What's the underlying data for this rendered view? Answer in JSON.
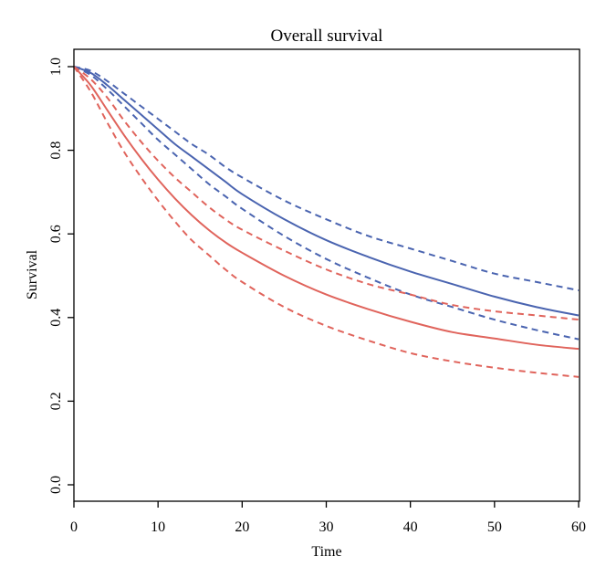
{
  "chart_data": {
    "type": "line",
    "title": "Overall survival",
    "xlabel": "Time",
    "ylabel": "Survival",
    "xlim": [
      0,
      60
    ],
    "ylim": [
      0,
      1
    ],
    "xticks": [
      0,
      10,
      20,
      30,
      40,
      50,
      60
    ],
    "xtick_labels": [
      "0",
      "10",
      "20",
      "30",
      "40",
      "50",
      "60"
    ],
    "yticks": [
      0,
      0.2,
      0.4,
      0.6,
      0.8,
      1
    ],
    "ytick_labels": [
      "0.0",
      "0.2",
      "0.4",
      "0.6",
      "0.8",
      "1.0"
    ],
    "grid": false,
    "legend": "none",
    "colors": {
      "blue": "#4a64b0",
      "red": "#e0645c"
    },
    "x": [
      0,
      2,
      4,
      6,
      8,
      10,
      12,
      14,
      16,
      18,
      20,
      25,
      30,
      35,
      40,
      45,
      50,
      55,
      60
    ],
    "series": [
      {
        "name": "blue estimate",
        "color": "blue",
        "style": "solid",
        "values": [
          1.0,
          0.985,
          0.955,
          0.92,
          0.885,
          0.85,
          0.815,
          0.785,
          0.755,
          0.725,
          0.695,
          0.635,
          0.585,
          0.545,
          0.51,
          0.48,
          0.45,
          0.425,
          0.405
        ]
      },
      {
        "name": "blue upper bound",
        "color": "blue",
        "style": "dashed",
        "values": [
          1.0,
          0.99,
          0.965,
          0.935,
          0.905,
          0.875,
          0.845,
          0.815,
          0.79,
          0.76,
          0.735,
          0.68,
          0.635,
          0.595,
          0.565,
          0.535,
          0.505,
          0.485,
          0.465
        ]
      },
      {
        "name": "blue lower bound",
        "color": "blue",
        "style": "dashed",
        "values": [
          1.0,
          0.98,
          0.945,
          0.905,
          0.865,
          0.825,
          0.79,
          0.755,
          0.72,
          0.69,
          0.66,
          0.595,
          0.54,
          0.495,
          0.455,
          0.425,
          0.395,
          0.37,
          0.348
        ]
      },
      {
        "name": "red estimate",
        "color": "red",
        "style": "solid",
        "values": [
          1.0,
          0.955,
          0.895,
          0.835,
          0.78,
          0.73,
          0.685,
          0.645,
          0.61,
          0.58,
          0.555,
          0.5,
          0.455,
          0.42,
          0.39,
          0.365,
          0.35,
          0.335,
          0.325
        ]
      },
      {
        "name": "red upper bound",
        "color": "red",
        "style": "dashed",
        "values": [
          1.0,
          0.97,
          0.925,
          0.87,
          0.82,
          0.775,
          0.735,
          0.7,
          0.665,
          0.635,
          0.61,
          0.56,
          0.515,
          0.48,
          0.455,
          0.43,
          0.415,
          0.405,
          0.395
        ]
      },
      {
        "name": "red lower bound",
        "color": "red",
        "style": "dashed",
        "values": [
          1.0,
          0.94,
          0.865,
          0.795,
          0.735,
          0.68,
          0.63,
          0.585,
          0.55,
          0.515,
          0.485,
          0.425,
          0.38,
          0.345,
          0.315,
          0.295,
          0.28,
          0.268,
          0.258
        ]
      }
    ]
  }
}
